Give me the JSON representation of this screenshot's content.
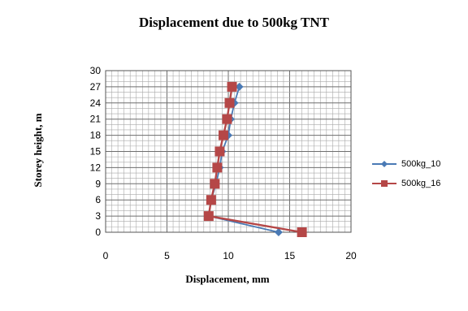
{
  "chart_data": {
    "type": "line",
    "title": "Displacement due to 500kg TNT",
    "xlabel": "Displacement, mm",
    "ylabel": "Storey height, m",
    "xlim": [
      0,
      20
    ],
    "ylim": [
      0,
      30
    ],
    "xticks": [
      0,
      5,
      10,
      15,
      20
    ],
    "yticks": [
      0,
      3,
      6,
      9,
      12,
      15,
      18,
      21,
      24,
      27,
      30
    ],
    "grid": true,
    "legend_position": "right",
    "series": [
      {
        "name": "500kg_10",
        "color": "#4a7ab5",
        "marker": "diamond",
        "points": [
          {
            "x": 14.1,
            "y": 0
          },
          {
            "x": 8.4,
            "y": 3
          },
          {
            "x": 8.6,
            "y": 6
          },
          {
            "x": 9.0,
            "y": 9
          },
          {
            "x": 9.3,
            "y": 12
          },
          {
            "x": 9.5,
            "y": 15
          },
          {
            "x": 10.0,
            "y": 18
          },
          {
            "x": 10.2,
            "y": 21
          },
          {
            "x": 10.5,
            "y": 24
          },
          {
            "x": 10.9,
            "y": 27
          }
        ]
      },
      {
        "name": "500kg_16",
        "color": "#b54747",
        "marker": "square",
        "points": [
          {
            "x": 16.0,
            "y": 0
          },
          {
            "x": 8.4,
            "y": 3
          },
          {
            "x": 8.6,
            "y": 6
          },
          {
            "x": 8.9,
            "y": 9
          },
          {
            "x": 9.1,
            "y": 12
          },
          {
            "x": 9.3,
            "y": 15
          },
          {
            "x": 9.6,
            "y": 18
          },
          {
            "x": 9.9,
            "y": 21
          },
          {
            "x": 10.1,
            "y": 24
          },
          {
            "x": 10.3,
            "y": 27
          }
        ]
      }
    ]
  }
}
